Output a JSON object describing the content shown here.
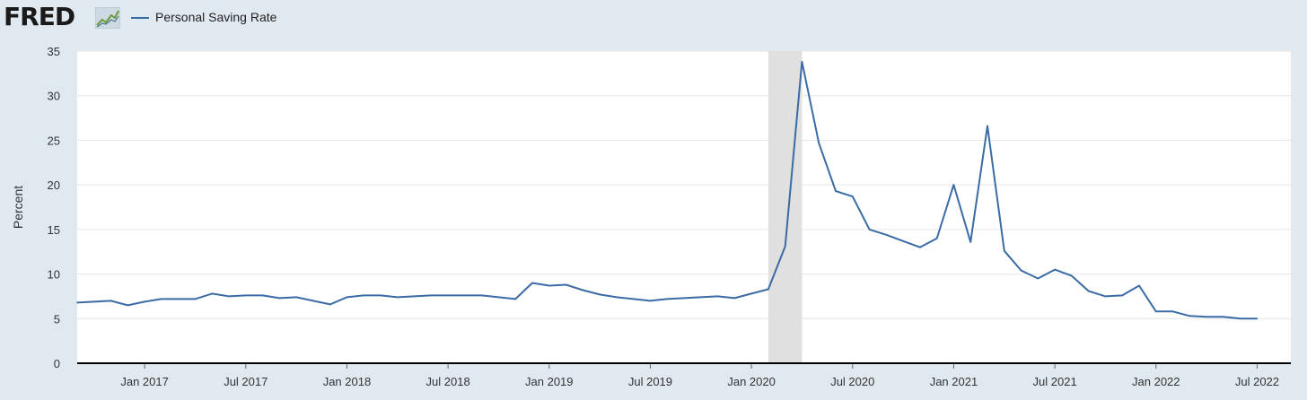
{
  "header": {
    "logo_text": "FRED",
    "logo_icon": "line-chart-icon",
    "legend_label": "Personal Saving Rate",
    "series_color": "#3b6ba5"
  },
  "chart_data": {
    "type": "line",
    "title": "",
    "xlabel": "",
    "ylabel": "Percent",
    "ylim": [
      0,
      35
    ],
    "yticks": [
      0,
      5,
      10,
      15,
      20,
      25,
      30,
      35
    ],
    "xrange": [
      "2016-09",
      "2022-09"
    ],
    "xticks": [
      "Jan 2017",
      "Jul 2017",
      "Jan 2018",
      "Jul 2018",
      "Jan 2019",
      "Jul 2019",
      "Jan 2020",
      "Jul 2020",
      "Jan 2021",
      "Jul 2021",
      "Jan 2022",
      "Jul 2022"
    ],
    "grid": true,
    "legend_position": "top",
    "recession_shading": {
      "start": "2020-02",
      "end": "2020-04",
      "color": "#e0e0e0"
    },
    "series": [
      {
        "name": "Personal Saving Rate",
        "color": "#3b6ba5",
        "points": [
          [
            "2016-09",
            6.8
          ],
          [
            "2016-10",
            6.9
          ],
          [
            "2016-11",
            7.0
          ],
          [
            "2016-12",
            6.5
          ],
          [
            "2017-01",
            6.9
          ],
          [
            "2017-02",
            7.2
          ],
          [
            "2017-03",
            7.2
          ],
          [
            "2017-04",
            7.2
          ],
          [
            "2017-05",
            7.8
          ],
          [
            "2017-06",
            7.5
          ],
          [
            "2017-07",
            7.6
          ],
          [
            "2017-08",
            7.6
          ],
          [
            "2017-09",
            7.3
          ],
          [
            "2017-10",
            7.4
          ],
          [
            "2017-11",
            7.0
          ],
          [
            "2017-12",
            6.6
          ],
          [
            "2018-01",
            7.4
          ],
          [
            "2018-02",
            7.6
          ],
          [
            "2018-03",
            7.6
          ],
          [
            "2018-04",
            7.4
          ],
          [
            "2018-05",
            7.5
          ],
          [
            "2018-06",
            7.6
          ],
          [
            "2018-07",
            7.6
          ],
          [
            "2018-08",
            7.6
          ],
          [
            "2018-09",
            7.6
          ],
          [
            "2018-10",
            7.4
          ],
          [
            "2018-11",
            7.2
          ],
          [
            "2018-12",
            9.0
          ],
          [
            "2019-01",
            8.7
          ],
          [
            "2019-02",
            8.8
          ],
          [
            "2019-03",
            8.2
          ],
          [
            "2019-04",
            7.7
          ],
          [
            "2019-05",
            7.4
          ],
          [
            "2019-06",
            7.2
          ],
          [
            "2019-07",
            7.0
          ],
          [
            "2019-08",
            7.2
          ],
          [
            "2019-09",
            7.3
          ],
          [
            "2019-10",
            7.4
          ],
          [
            "2019-11",
            7.5
          ],
          [
            "2019-12",
            7.3
          ],
          [
            "2020-01",
            7.8
          ],
          [
            "2020-02",
            8.3
          ],
          [
            "2020-03",
            13.1
          ],
          [
            "2020-04",
            33.8
          ],
          [
            "2020-05",
            24.7
          ],
          [
            "2020-06",
            19.3
          ],
          [
            "2020-07",
            18.7
          ],
          [
            "2020-08",
            15.0
          ],
          [
            "2020-09",
            14.4
          ],
          [
            "2020-10",
            13.7
          ],
          [
            "2020-11",
            13.0
          ],
          [
            "2020-12",
            14.0
          ],
          [
            "2021-01",
            20.0
          ],
          [
            "2021-02",
            13.6
          ],
          [
            "2021-03",
            26.6
          ],
          [
            "2021-04",
            12.6
          ],
          [
            "2021-05",
            10.4
          ],
          [
            "2021-06",
            9.5
          ],
          [
            "2021-07",
            10.5
          ],
          [
            "2021-08",
            9.8
          ],
          [
            "2021-09",
            8.1
          ],
          [
            "2021-10",
            7.5
          ],
          [
            "2021-11",
            7.6
          ],
          [
            "2021-12",
            8.7
          ],
          [
            "2022-01",
            5.8
          ],
          [
            "2022-02",
            5.8
          ],
          [
            "2022-03",
            5.3
          ],
          [
            "2022-04",
            5.2
          ],
          [
            "2022-05",
            5.2
          ],
          [
            "2022-06",
            5.0
          ],
          [
            "2022-07",
            5.0
          ]
        ]
      }
    ]
  }
}
